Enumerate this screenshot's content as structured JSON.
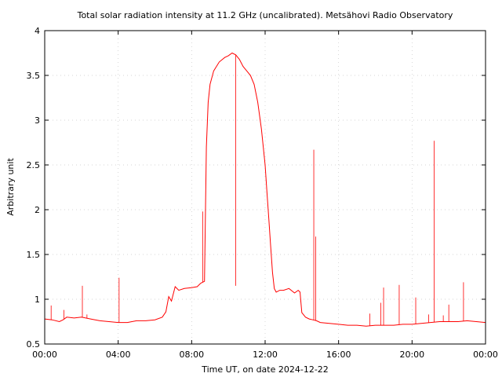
{
  "chart_data": {
    "type": "line",
    "title": "Total solar radiation intensity at 11.2 GHz (uncalibrated). Metsähovi Radio Observatory",
    "xlabel": "Time UT, on date 2024-12-22",
    "ylabel": "Arbitrary unit",
    "xlim": [
      0,
      24
    ],
    "ylim": [
      0.5,
      4
    ],
    "grid": true,
    "x_ticks": [
      0,
      4,
      8,
      12,
      16,
      20,
      24
    ],
    "x_tick_labels": [
      "00:00",
      "04:00",
      "08:00",
      "12:00",
      "16:00",
      "20:00",
      "00:00"
    ],
    "y_ticks": [
      0.5,
      1,
      1.5,
      2,
      2.5,
      3,
      3.5,
      4
    ],
    "y_tick_labels": [
      "0.5",
      "1",
      "1.5",
      "2",
      "2.5",
      "3",
      "3.5",
      "4"
    ],
    "series": [
      {
        "color": "#ff0000",
        "x": [
          0,
          0.4,
          0.8,
          1.0,
          1.2,
          1.6,
          2.0,
          2.5,
          3.0,
          3.5,
          4.0,
          4.5,
          5.0,
          5.5,
          6.0,
          6.4,
          6.6,
          6.75,
          6.9,
          7.1,
          7.3,
          7.6,
          8.0,
          8.3,
          8.5,
          8.7,
          8.8,
          8.9,
          9.0,
          9.2,
          9.5,
          9.8,
          10.0,
          10.2,
          10.4,
          10.6,
          10.8,
          11.0,
          11.2,
          11.4,
          11.6,
          11.8,
          12.0,
          12.1,
          12.2,
          12.3,
          12.4,
          12.5,
          12.6,
          12.8,
          13.0,
          13.3,
          13.6,
          13.8,
          13.9,
          14.0,
          14.2,
          14.4,
          14.6,
          14.8,
          15.0,
          15.5,
          16.0,
          16.5,
          17.0,
          17.5,
          18.0,
          18.5,
          19.0,
          19.5,
          20.0,
          20.5,
          21.0,
          21.5,
          22.0,
          22.5,
          23.0,
          23.5,
          24.0
        ],
        "y": [
          0.78,
          0.77,
          0.75,
          0.77,
          0.8,
          0.79,
          0.8,
          0.78,
          0.76,
          0.75,
          0.74,
          0.74,
          0.76,
          0.76,
          0.77,
          0.8,
          0.86,
          1.03,
          0.98,
          1.14,
          1.1,
          1.12,
          1.13,
          1.14,
          1.18,
          1.2,
          2.7,
          3.2,
          3.4,
          3.55,
          3.65,
          3.7,
          3.72,
          3.75,
          3.73,
          3.68,
          3.6,
          3.55,
          3.5,
          3.4,
          3.2,
          2.9,
          2.5,
          2.2,
          1.9,
          1.6,
          1.3,
          1.12,
          1.08,
          1.1,
          1.1,
          1.12,
          1.07,
          1.1,
          1.08,
          0.85,
          0.8,
          0.78,
          0.77,
          0.76,
          0.74,
          0.73,
          0.72,
          0.71,
          0.71,
          0.7,
          0.71,
          0.71,
          0.71,
          0.72,
          0.72,
          0.73,
          0.74,
          0.75,
          0.75,
          0.75,
          0.76,
          0.75,
          0.74
        ]
      }
    ],
    "spikes": [
      {
        "x": 0.35,
        "y": 0.93
      },
      {
        "x": 1.05,
        "y": 0.88
      },
      {
        "x": 2.05,
        "y": 1.15
      },
      {
        "x": 2.3,
        "y": 0.83
      },
      {
        "x": 4.05,
        "y": 1.24
      },
      {
        "x": 8.6,
        "y": 1.98
      },
      {
        "x": 10.4,
        "y": 1.15
      },
      {
        "x": 14.65,
        "y": 2.67
      },
      {
        "x": 14.75,
        "y": 1.7
      },
      {
        "x": 17.7,
        "y": 0.84
      },
      {
        "x": 18.3,
        "y": 0.96
      },
      {
        "x": 18.45,
        "y": 1.13
      },
      {
        "x": 19.3,
        "y": 1.16
      },
      {
        "x": 20.2,
        "y": 1.02
      },
      {
        "x": 20.9,
        "y": 0.83
      },
      {
        "x": 21.2,
        "y": 2.77
      },
      {
        "x": 21.7,
        "y": 0.82
      },
      {
        "x": 22.0,
        "y": 0.94
      },
      {
        "x": 22.8,
        "y": 1.19
      }
    ]
  }
}
